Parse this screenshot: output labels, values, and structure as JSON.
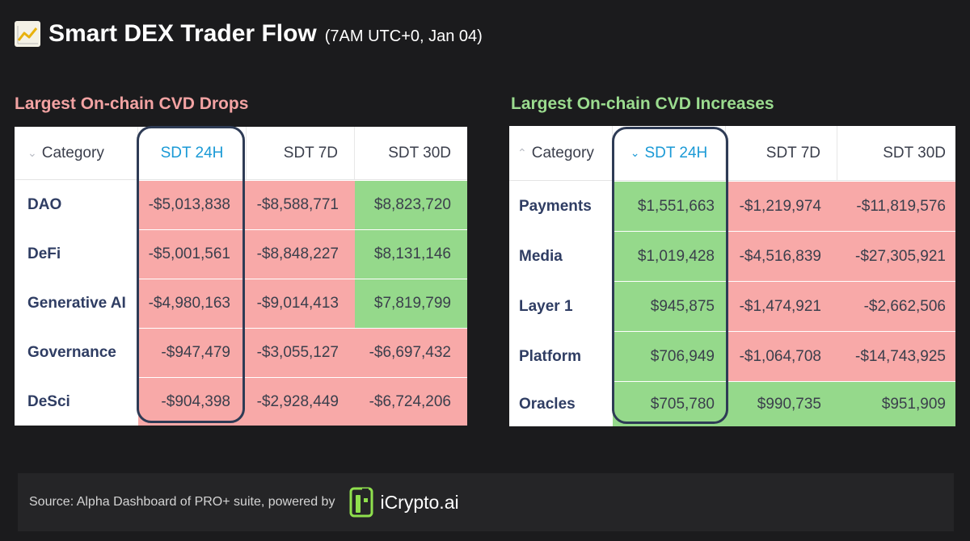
{
  "header": {
    "title": "Smart DEX Trader Flow",
    "subtitle": "(7AM UTC+0, Jan 04)",
    "icon": "chart-trend-icon"
  },
  "drops": {
    "section_title": "Largest On-chain CVD Drops",
    "columns": [
      "Category",
      "SDT 24H",
      "SDT 7D",
      "SDT 30D"
    ],
    "rows": [
      {
        "category": "DAO",
        "sdt24h": "-$5,013,838",
        "sdt7d": "-$8,588,771",
        "sdt30d": "$8,823,720"
      },
      {
        "category": "DeFi",
        "sdt24h": "-$5,001,561",
        "sdt7d": "-$8,848,227",
        "sdt30d": "$8,131,146"
      },
      {
        "category": "Generative AI",
        "sdt24h": "-$4,980,163",
        "sdt7d": "-$9,014,413",
        "sdt30d": "$7,819,799"
      },
      {
        "category": "Governance",
        "sdt24h": "-$947,479",
        "sdt7d": "-$3,055,127",
        "sdt30d": "-$6,697,432"
      },
      {
        "category": "DeSci",
        "sdt24h": "-$904,398",
        "sdt7d": "-$2,928,449",
        "sdt30d": "-$6,724,206"
      }
    ]
  },
  "increases": {
    "section_title": "Largest On-chain CVD Increases",
    "columns": [
      "Category",
      "SDT 24H",
      "SDT 7D",
      "SDT 30D"
    ],
    "rows": [
      {
        "category": "Payments",
        "sdt24h": "$1,551,663",
        "sdt7d": "-$1,219,974",
        "sdt30d": "-$11,819,576"
      },
      {
        "category": "Media",
        "sdt24h": "$1,019,428",
        "sdt7d": "-$4,516,839",
        "sdt30d": "-$27,305,921"
      },
      {
        "category": "Layer 1",
        "sdt24h": "$945,875",
        "sdt7d": "-$1,474,921",
        "sdt30d": "-$2,662,506"
      },
      {
        "category": "Platform",
        "sdt24h": "$706,949",
        "sdt7d": "-$1,064,708",
        "sdt30d": "-$14,743,925"
      },
      {
        "category": "Oracles",
        "sdt24h": "$705,780",
        "sdt7d": "$990,735",
        "sdt30d": "$951,909"
      }
    ]
  },
  "footer": {
    "source": "Source: Alpha Dashboard of PRO+ suite, powered by",
    "brand": "iCrypto.ai"
  },
  "colors": {
    "negative": "#f8a9a8",
    "positive": "#95d98b",
    "accent": "#1b9ad6",
    "drops_title": "#f3a3a3",
    "increases_title": "#9bdc8f"
  }
}
